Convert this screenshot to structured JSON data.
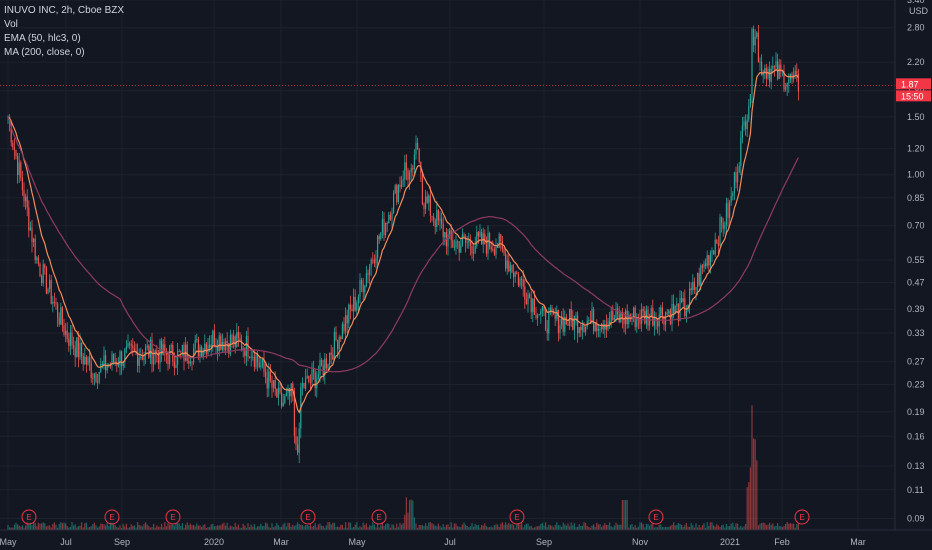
{
  "legend": {
    "symbol_line": "INUVO INC, 2h, Cboe BZX",
    "vol_label": "Vol",
    "ema_label": "EMA (50, hlc3, 0)",
    "ma_label": "MA (200, close, 0)"
  },
  "colors": {
    "background": "#131722",
    "grid": "#1e222d",
    "up": "#26a69a",
    "down": "#ef5350",
    "ema": "#f28d5c",
    "ma": "#8e3b63",
    "price_line": "#f23645",
    "text": "#b2b5be"
  },
  "price_tags": [
    "1.87",
    "15:50"
  ],
  "earnings_marker_label": "E",
  "chart_data": {
    "type": "candlestick",
    "title": "INUVO INC, 2h, Cboe BZX",
    "y_scale": "log",
    "y_unit": "USD",
    "y_ticks": [
      "3.40",
      "2.80",
      "2.20",
      "1.80",
      "1.50",
      "1.20",
      "1.00",
      "0.85",
      "0.70",
      "0.55",
      "0.47",
      "0.39",
      "0.33",
      "0.27",
      "0.23",
      "0.19",
      "0.16",
      "0.13",
      "0.11",
      "0.09"
    ],
    "x_ticks": [
      "May",
      "Jul",
      "Sep",
      "2020",
      "Mar",
      "May",
      "Jul",
      "Sep",
      "Nov",
      "2021",
      "Feb",
      "Mar"
    ],
    "current_price": 1.87,
    "earnings_months": [
      "Jun",
      "Aug",
      "Oct",
      "Mar",
      "May",
      "Aug",
      "Nov",
      "Feb"
    ],
    "series": [
      {
        "name": "EMA (50, hlc3, 0)",
        "type": "line"
      },
      {
        "name": "MA (200, close, 0)",
        "type": "line"
      },
      {
        "name": "Vol",
        "type": "bar"
      }
    ],
    "price_path": [
      [
        "May",
        1.5
      ],
      [
        "Jun",
        0.55
      ],
      [
        "Jul",
        0.33
      ],
      [
        "Aug",
        0.25
      ],
      [
        "Sep",
        0.28
      ],
      [
        "Oct",
        0.29
      ],
      [
        "Nov",
        0.28
      ],
      [
        "Dec",
        0.3
      ],
      [
        "2020",
        0.32
      ],
      [
        "Feb",
        0.3
      ],
      [
        "Mar",
        0.2
      ],
      [
        "Apr",
        0.25
      ],
      [
        "May",
        0.42
      ],
      [
        "Jun",
        1.05
      ],
      [
        "Jul",
        0.62
      ],
      [
        "Aug",
        0.62
      ],
      [
        "Sep",
        0.36
      ],
      [
        "Oct",
        0.36
      ],
      [
        "Nov",
        0.37
      ],
      [
        "Dec",
        0.39
      ],
      [
        "2021",
        0.8
      ],
      [
        "Jan",
        2.2
      ],
      [
        "Feb",
        1.87
      ]
    ]
  }
}
